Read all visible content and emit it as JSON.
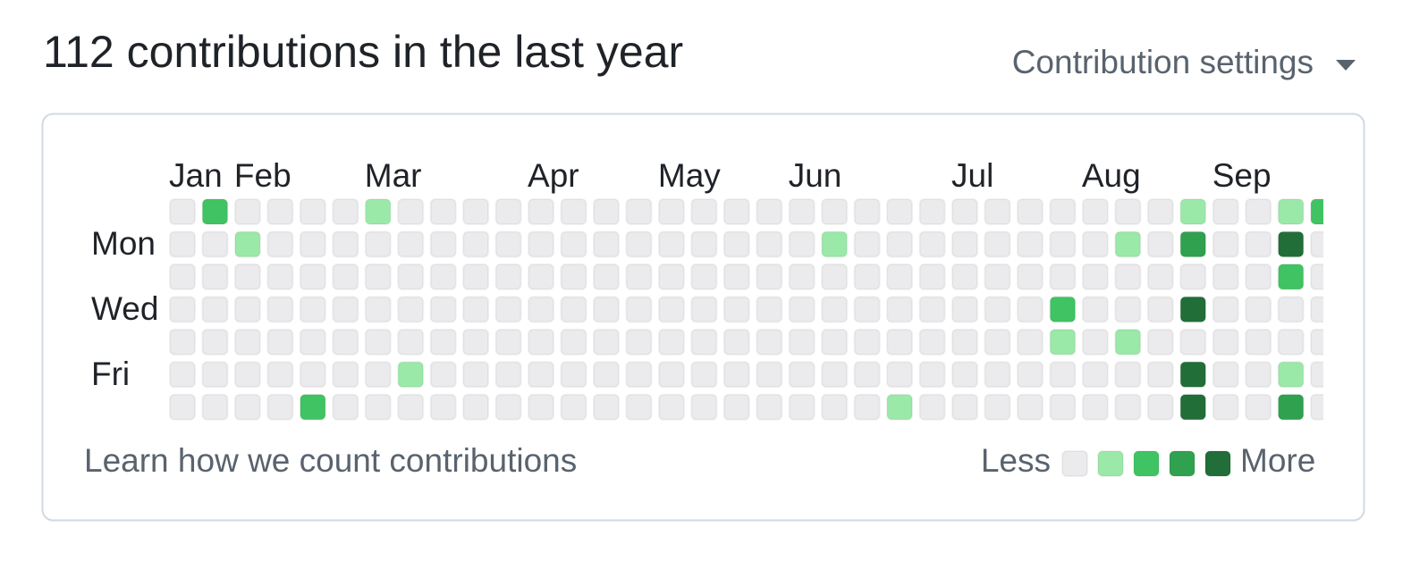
{
  "header": {
    "title": "112 contributions in the last year",
    "settings": "Contribution settings"
  },
  "months": [
    "Jan",
    "Feb",
    "Mar",
    "Apr",
    "May",
    "Jun",
    "Jul",
    "Aug",
    "Sep"
  ],
  "days": [
    "Mon",
    "Wed",
    "Fri"
  ],
  "level_colors": [
    "#ebebed",
    "#9be9a8",
    "#40c463",
    "#30a14e",
    "#216e39"
  ],
  "grid": {
    "rows": [
      [
        0,
        2,
        0,
        0,
        0,
        0,
        1,
        0,
        0,
        0,
        0,
        0,
        0,
        0,
        0,
        0,
        0,
        0,
        0,
        0,
        0,
        0,
        0,
        0,
        0,
        0,
        0,
        0,
        0,
        0,
        0,
        1,
        0,
        0,
        1,
        2
      ],
      [
        0,
        0,
        1,
        0,
        0,
        0,
        0,
        0,
        0,
        0,
        0,
        0,
        0,
        0,
        0,
        0,
        0,
        0,
        0,
        0,
        1,
        0,
        0,
        0,
        0,
        0,
        0,
        0,
        0,
        1,
        0,
        3,
        0,
        0,
        4,
        0
      ],
      [
        0,
        0,
        0,
        0,
        0,
        0,
        0,
        0,
        0,
        0,
        0,
        0,
        0,
        0,
        0,
        0,
        0,
        0,
        0,
        0,
        0,
        0,
        0,
        0,
        0,
        0,
        0,
        0,
        0,
        0,
        0,
        0,
        0,
        0,
        2,
        0
      ],
      [
        0,
        0,
        0,
        0,
        0,
        0,
        0,
        0,
        0,
        0,
        0,
        0,
        0,
        0,
        0,
        0,
        0,
        0,
        0,
        0,
        0,
        0,
        0,
        0,
        0,
        0,
        0,
        2,
        0,
        0,
        0,
        4,
        0,
        0,
        0,
        0
      ],
      [
        0,
        0,
        0,
        0,
        0,
        0,
        0,
        0,
        0,
        0,
        0,
        0,
        0,
        0,
        0,
        0,
        0,
        0,
        0,
        0,
        0,
        0,
        0,
        0,
        0,
        0,
        0,
        1,
        0,
        1,
        0,
        0,
        0,
        0,
        0,
        0
      ],
      [
        0,
        0,
        0,
        0,
        0,
        0,
        0,
        1,
        0,
        0,
        0,
        0,
        0,
        0,
        0,
        0,
        0,
        0,
        0,
        0,
        0,
        0,
        0,
        0,
        0,
        0,
        0,
        0,
        0,
        0,
        0,
        4,
        0,
        0,
        1,
        0
      ],
      [
        0,
        0,
        0,
        0,
        2,
        0,
        0,
        0,
        0,
        0,
        0,
        0,
        0,
        0,
        0,
        0,
        0,
        0,
        0,
        0,
        0,
        0,
        1,
        0,
        0,
        0,
        0,
        0,
        0,
        0,
        0,
        4,
        0,
        0,
        3,
        0
      ]
    ]
  },
  "footer": {
    "learn": "Learn how we count contributions"
  },
  "legend": {
    "less": "Less",
    "more": "More",
    "levels": [
      0,
      1,
      2,
      3,
      4
    ]
  }
}
